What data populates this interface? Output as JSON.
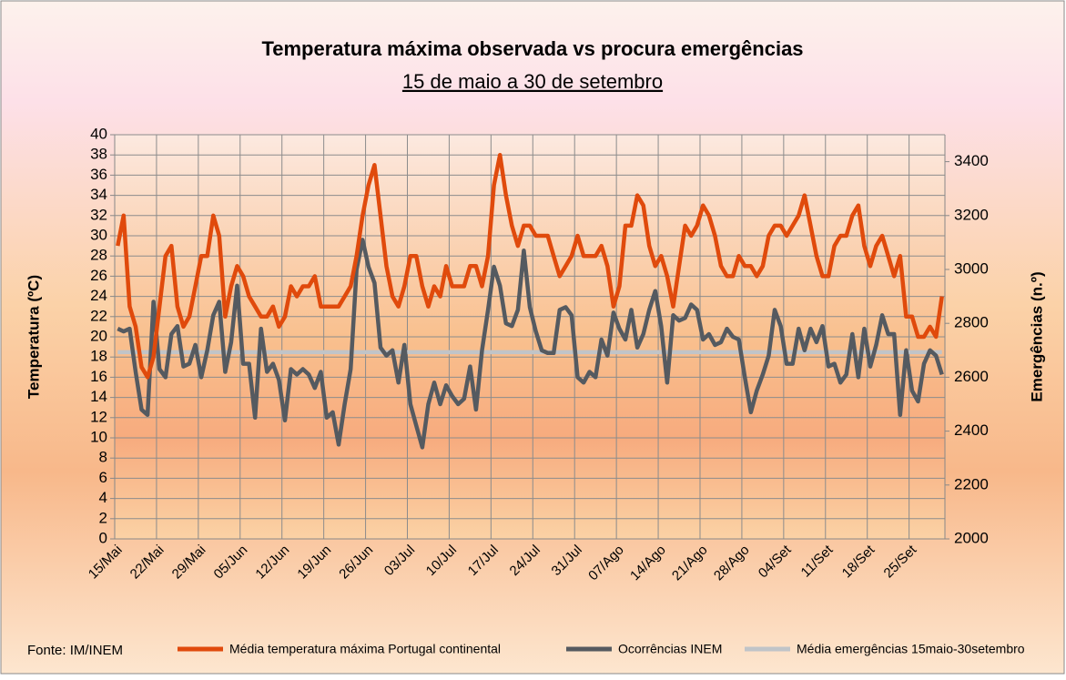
{
  "chart_data": {
    "type": "line",
    "title": "Temperatura máxima observada vs procura emergências",
    "subtitle": "15 de maio a 30 de setembro",
    "y_label": "Temperatura (ºC)",
    "y2_label": "Emergências (n.º)",
    "annotation": "Fonte: IM/INEM",
    "categories": [
      "15/Mai",
      null,
      null,
      null,
      null,
      null,
      null,
      "22/Mai",
      null,
      null,
      null,
      null,
      null,
      null,
      "29/Mai",
      null,
      null,
      null,
      null,
      null,
      null,
      "05/Jun",
      null,
      null,
      null,
      null,
      null,
      null,
      "12/Jun",
      null,
      null,
      null,
      null,
      null,
      null,
      "19/Jun",
      null,
      null,
      null,
      null,
      null,
      null,
      "26/Jun",
      null,
      null,
      null,
      null,
      null,
      null,
      "03/Jul",
      null,
      null,
      null,
      null,
      null,
      null,
      "10/Jul",
      null,
      null,
      null,
      null,
      null,
      null,
      "17/Jul",
      null,
      null,
      null,
      null,
      null,
      null,
      "24/Jul",
      null,
      null,
      null,
      null,
      null,
      null,
      "31/Jul",
      null,
      null,
      null,
      null,
      null,
      null,
      "07/Ago",
      null,
      null,
      null,
      null,
      null,
      null,
      "14/Ago",
      null,
      null,
      null,
      null,
      null,
      null,
      "21/Ago",
      null,
      null,
      null,
      null,
      null,
      null,
      "28/Ago",
      null,
      null,
      null,
      null,
      null,
      null,
      "04/Set",
      null,
      null,
      null,
      null,
      null,
      null,
      "11/Set",
      null,
      null,
      null,
      null,
      null,
      null,
      "18/Set",
      null,
      null,
      null,
      null,
      null,
      null,
      "25/Set",
      null,
      null,
      null,
      null,
      null
    ],
    "series": [
      {
        "name": "Média temperatura máxima Portugal continental",
        "color": "#e04a0c",
        "axis": "y",
        "values": [
          29,
          32,
          23,
          21,
          17,
          16,
          18,
          23,
          28,
          29,
          23,
          21,
          22,
          25,
          28,
          28,
          32,
          30,
          22,
          25,
          27,
          26,
          24,
          23,
          22,
          22,
          23,
          21,
          22,
          25,
          24,
          25,
          25,
          26,
          23,
          23,
          23,
          23,
          24,
          25,
          28,
          32,
          35,
          37,
          32,
          27,
          24,
          23,
          25,
          28,
          28,
          25,
          23,
          25,
          24,
          27,
          25,
          25,
          25,
          27,
          27,
          25,
          28,
          35,
          38,
          34,
          31,
          29,
          31,
          31,
          30,
          30,
          30,
          28,
          26,
          27,
          28,
          30,
          28,
          28,
          28,
          29,
          27,
          23,
          25,
          31,
          31,
          34,
          33,
          29,
          27,
          28,
          26,
          23,
          27,
          31,
          30,
          31,
          33,
          32,
          30,
          27,
          26,
          26,
          28,
          27,
          27,
          26,
          27,
          30,
          31,
          31,
          30,
          31,
          32,
          34,
          31,
          28,
          26,
          26,
          29,
          30,
          30,
          32,
          33,
          29,
          27,
          29,
          30,
          28,
          26,
          28,
          22,
          22,
          20,
          20,
          21,
          20,
          24
        ]
      },
      {
        "name": "Ocorrências INEM",
        "color": "#555a60",
        "axis": "y2",
        "values": [
          2780,
          2770,
          2780,
          2620,
          2480,
          2460,
          2880,
          2630,
          2600,
          2760,
          2790,
          2640,
          2650,
          2720,
          2600,
          2700,
          2830,
          2880,
          2620,
          2730,
          2940,
          2650,
          2650,
          2450,
          2780,
          2620,
          2650,
          2590,
          2440,
          2630,
          2610,
          2630,
          2610,
          2560,
          2620,
          2450,
          2470,
          2350,
          2500,
          2630,
          3000,
          3110,
          3010,
          2950,
          2710,
          2680,
          2700,
          2580,
          2720,
          2500,
          2420,
          2340,
          2500,
          2580,
          2500,
          2570,
          2530,
          2500,
          2520,
          2640,
          2480,
          2700,
          2850,
          3010,
          2940,
          2800,
          2790,
          2850,
          3070,
          2860,
          2770,
          2700,
          2690,
          2690,
          2850,
          2860,
          2830,
          2600,
          2580,
          2620,
          2600,
          2740,
          2680,
          2840,
          2780,
          2740,
          2850,
          2710,
          2760,
          2850,
          2920,
          2790,
          2580,
          2830,
          2810,
          2820,
          2870,
          2850,
          2740,
          2760,
          2720,
          2730,
          2780,
          2750,
          2740,
          2600,
          2470,
          2550,
          2610,
          2680,
          2850,
          2790,
          2650,
          2650,
          2780,
          2700,
          2780,
          2730,
          2790,
          2640,
          2650,
          2580,
          2610,
          2760,
          2600,
          2780,
          2640,
          2720,
          2830,
          2760,
          2760,
          2460,
          2700,
          2550,
          2510,
          2650,
          2700,
          2680,
          2610
        ]
      },
      {
        "name": "Média emergências 15maio-30setembro",
        "color": "#c0c4c8",
        "axis": "y2",
        "values": [
          2693,
          2693,
          2693,
          2693,
          2693,
          2693,
          2693,
          2693,
          2693,
          2693,
          2693,
          2693,
          2693,
          2693,
          2693,
          2693,
          2693,
          2693,
          2693,
          2693,
          2693,
          2693,
          2693,
          2693,
          2693,
          2693,
          2693,
          2693,
          2693,
          2693,
          2693,
          2693,
          2693,
          2693,
          2693,
          2693,
          2693,
          2693,
          2693,
          2693,
          2693,
          2693,
          2693,
          2693,
          2693,
          2693,
          2693,
          2693,
          2693,
          2693,
          2693,
          2693,
          2693,
          2693,
          2693,
          2693,
          2693,
          2693,
          2693,
          2693,
          2693,
          2693,
          2693,
          2693,
          2693,
          2693,
          2693,
          2693,
          2693,
          2693,
          2693,
          2693,
          2693,
          2693,
          2693,
          2693,
          2693,
          2693,
          2693,
          2693,
          2693,
          2693,
          2693,
          2693,
          2693,
          2693,
          2693,
          2693,
          2693,
          2693,
          2693,
          2693,
          2693,
          2693,
          2693,
          2693,
          2693,
          2693,
          2693,
          2693,
          2693,
          2693,
          2693,
          2693,
          2693,
          2693,
          2693,
          2693,
          2693,
          2693,
          2693,
          2693,
          2693,
          2693,
          2693,
          2693,
          2693,
          2693,
          2693,
          2693,
          2693,
          2693,
          2693,
          2693,
          2693,
          2693,
          2693,
          2693,
          2693,
          2693,
          2693,
          2693,
          2693,
          2693,
          2693,
          2693,
          2693,
          2693,
          2693
        ]
      }
    ],
    "ylim": [
      0,
      40
    ],
    "yticks": [
      0,
      2,
      4,
      6,
      8,
      10,
      12,
      14,
      16,
      18,
      20,
      22,
      24,
      26,
      28,
      30,
      32,
      34,
      36,
      38,
      40
    ],
    "y2lim": [
      2000,
      3500
    ],
    "y2ticks": [
      2000,
      2200,
      2400,
      2600,
      2800,
      3000,
      3200,
      3400
    ],
    "grid": true,
    "legend": "bottom"
  }
}
